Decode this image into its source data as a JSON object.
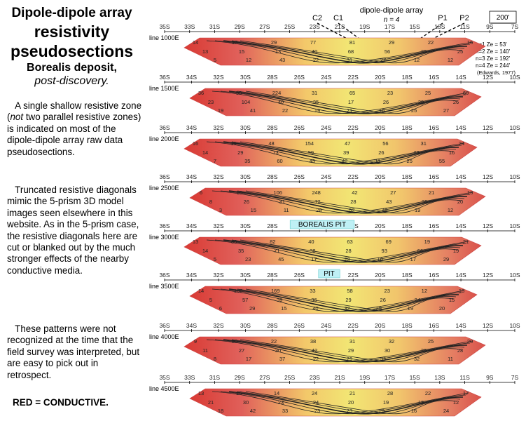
{
  "left": {
    "title_line1": "Dipole-dipole array",
    "title_line2": "resistivity",
    "title_line3": "pseudosections",
    "title_line4": "Borealis deposit,",
    "title_line5": "post-discovery.",
    "para1_a": "A single shallow resistive zone (",
    "para1_em": "not",
    "para1_b": " two parallel resistive zones) is indicated on most of the dipole-dipole array raw data pseudosections.",
    "para2": "Truncated resistive diagonals mimic the 5-prism 3D model images seen elsewhere in this website.  As in the 5-prism case, the resistive diagonals here are cut or blanked out by the much stronger effects of the nearby conductive media.",
    "para3": "These patterns were not recognized at the time that the field survey was interpreted, but are easy to pick out in retrospect.",
    "red_note": "RED = CONDUCTIVE."
  },
  "array": {
    "title": "dipole-dipole array",
    "n_label": "n = 4",
    "electrodes": [
      "C2",
      "C1",
      "P1",
      "P2"
    ],
    "scale": "200'",
    "legend": [
      "n=1 Ze = 53'",
      "n=2 Ze = 140'",
      "n=3 Ze = 192'",
      "n=4 Ze = 244'"
    ],
    "ref": "(Edwards, 1977)"
  },
  "sections": [
    {
      "line": "line 1000E",
      "ticks": [
        "35S",
        "33S",
        "31S",
        "29S",
        "27S",
        "25S",
        "23S",
        "21S",
        "19S",
        "17S",
        "15S",
        "13S",
        "11S",
        "9S",
        "7S"
      ],
      "tag": "",
      "values": [
        "14",
        "17",
        "29",
        "77",
        "81",
        "29",
        "22",
        "16",
        "13",
        "15",
        "13",
        "40",
        "68",
        "56",
        "39",
        "25",
        "5",
        "12",
        "43",
        "22",
        "31",
        "27",
        "12",
        "12"
      ]
    },
    {
      "line": "line 1500E",
      "ticks": [
        "36S",
        "34S",
        "32S",
        "30S",
        "28S",
        "26S",
        "24S",
        "22S",
        "20S",
        "18S",
        "16S",
        "14S",
        "12S",
        "10S"
      ],
      "tag": "",
      "values": [
        "36",
        "50",
        "224",
        "31",
        "65",
        "23",
        "25",
        "60",
        "23",
        "104",
        "40",
        "35",
        "17",
        "26",
        "29",
        "26",
        "19",
        "41",
        "22",
        "19",
        "21",
        "16",
        "25",
        "27"
      ]
    },
    {
      "line": "line 2000E",
      "ticks": [
        "36S",
        "34S",
        "32S",
        "30S",
        "28S",
        "26S",
        "24S",
        "22S",
        "20S",
        "18S",
        "16S",
        "14S",
        "12S",
        "10S"
      ],
      "tag": "",
      "values": [
        "16",
        "19",
        "48",
        "154",
        "47",
        "56",
        "31",
        "24",
        "14",
        "29",
        "73",
        "99",
        "39",
        "26",
        "23",
        "16",
        "7",
        "35",
        "60",
        "45",
        "42",
        "34",
        "25",
        "55"
      ]
    },
    {
      "line": "line 2500E",
      "ticks": [
        "36S",
        "34S",
        "32S",
        "30S",
        "28S",
        "26S",
        "24S",
        "22S",
        "20S",
        "18S",
        "16S",
        "14S",
        "12S",
        "10S"
      ],
      "tag": "",
      "values": [
        "6",
        "16",
        "106",
        "248",
        "42",
        "27",
        "21",
        "13",
        "8",
        "26",
        "31",
        "72",
        "28",
        "43",
        "36",
        "20",
        "3",
        "15",
        "11",
        "28",
        "52",
        "48",
        "19",
        "12"
      ]
    },
    {
      "line": "line 3000E",
      "ticks": [
        "36S",
        "34S",
        "32S",
        "30S",
        "28S",
        "26S",
        "24S",
        "22S",
        "20S",
        "18S",
        "16S",
        "14S",
        "12S",
        "10S"
      ],
      "tag": "BOREALIS PIT",
      "values": [
        "13",
        "80",
        "82",
        "40",
        "63",
        "69",
        "19",
        "21",
        "14",
        "35",
        "71",
        "38",
        "28",
        "93",
        "66",
        "19",
        "5",
        "23",
        "45",
        "17",
        "29",
        "16",
        "17",
        "29"
      ]
    },
    {
      "line": "line 3500E",
      "ticks": [
        "36S",
        "34S",
        "32S",
        "30S",
        "28S",
        "26S",
        "24S",
        "22S",
        "20S",
        "18S",
        "16S",
        "14S",
        "12S",
        "10S"
      ],
      "tag": "PIT",
      "values": [
        "14",
        "106",
        "169",
        "33",
        "58",
        "23",
        "12",
        "18",
        "5",
        "57",
        "39",
        "36",
        "29",
        "26",
        "24",
        "15",
        "6",
        "29",
        "15",
        "40",
        "32",
        "29",
        "19",
        "20"
      ]
    },
    {
      "line": "line 4000E",
      "ticks": [
        "36S",
        "34S",
        "32S",
        "30S",
        "28S",
        "26S",
        "24S",
        "22S",
        "20S",
        "18S",
        "16S",
        "14S",
        "12S",
        "10S"
      ],
      "tag": "",
      "values": [
        "9",
        "80",
        "22",
        "38",
        "31",
        "32",
        "25",
        "20",
        "11",
        "27",
        "30",
        "42",
        "29",
        "30",
        "36",
        "28",
        "8",
        "17",
        "37",
        "22",
        "29",
        "33",
        "32",
        "11"
      ]
    },
    {
      "line": "line 4500E",
      "ticks": [
        "35S",
        "33S",
        "31S",
        "29S",
        "27S",
        "25S",
        "23S",
        "21S",
        "19S",
        "17S",
        "15S",
        "13S",
        "11S",
        "9S",
        "7S"
      ],
      "tag": "",
      "values": [
        "13",
        "15",
        "14",
        "24",
        "21",
        "28",
        "22",
        "17",
        "21",
        "30",
        "23",
        "24",
        "20",
        "19",
        "13",
        "12",
        "18",
        "42",
        "33",
        "23",
        "23",
        "29",
        "16",
        "24"
      ]
    }
  ]
}
